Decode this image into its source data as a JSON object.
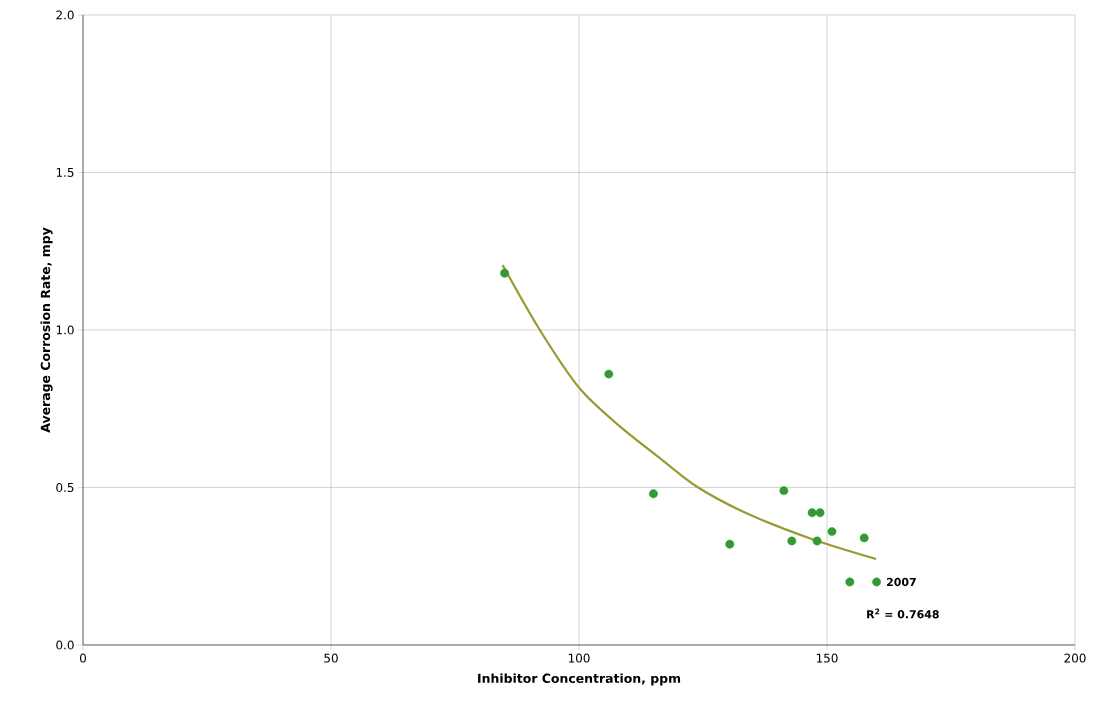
{
  "chart_data": {
    "type": "scatter",
    "xlabel": "Inhibitor Concentration, ppm",
    "ylabel": "Average Corrosion Rate, mpy",
    "xlim": [
      0,
      200
    ],
    "xticks": [
      0,
      50,
      100,
      150,
      200
    ],
    "ylim": [
      0,
      2.0
    ],
    "yticks": [
      {
        "value": 0,
        "label": "0.0"
      },
      {
        "value": 0.5,
        "label": "0.5"
      },
      {
        "value": 1.0,
        "label": "1.0"
      },
      {
        "value": 1.5,
        "label": "1.5"
      },
      {
        "value": 2.0,
        "label": "2.0"
      }
    ],
    "grid": true,
    "series": [
      {
        "marker": "circle",
        "color": "#339933",
        "x": [
          85,
          106,
          115,
          130.4,
          141.3,
          142.9,
          147,
          148.6,
          148,
          151,
          154.6,
          157.5,
          160
        ],
        "values": [
          1.18,
          0.86,
          0.48,
          0.32,
          0.49,
          0.33,
          0.42,
          0.42,
          0.33,
          0.36,
          0.2,
          0.34,
          0.2
        ]
      },
      {
        "type": "line",
        "color": "#999933",
        "x": [
          84.6,
          92.1,
          100.1,
          108.3,
          116.3,
          123.7,
          133.8,
          147.2,
          159.9
        ],
        "values": [
          1.206,
          1.0,
          0.815,
          0.693,
          0.593,
          0.503,
          0.418,
          0.335,
          0.273
        ]
      }
    ],
    "annotations": [
      {
        "text": "2007",
        "x": 160,
        "y": 0.2
      },
      "R$^{2}$ = 0.7648"
    ]
  }
}
